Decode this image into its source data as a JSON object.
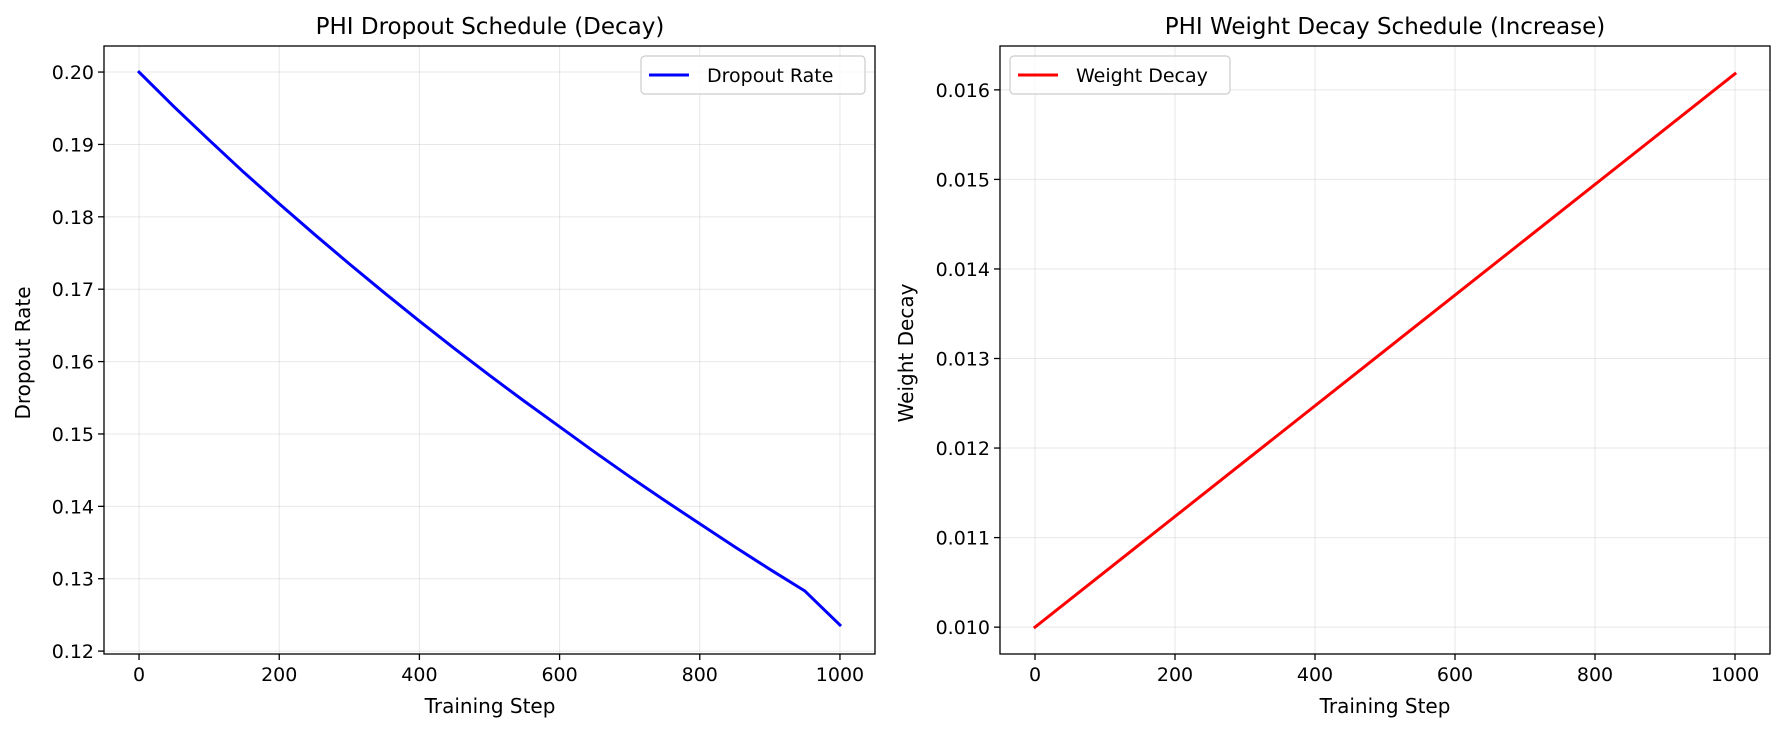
{
  "chart_data": [
    {
      "type": "line",
      "title": "PHI Dropout Schedule (Decay)",
      "xlabel": "Training Step",
      "ylabel": "Dropout Rate",
      "xlim": [
        -50,
        1050
      ],
      "ylim": [
        0.1196,
        0.2036
      ],
      "xticks": [
        0,
        200,
        400,
        600,
        800,
        1000
      ],
      "xtick_labels": [
        "0",
        "200",
        "400",
        "600",
        "800",
        "1000"
      ],
      "yticks": [
        0.12,
        0.13,
        0.14,
        0.15,
        0.16,
        0.17,
        0.18,
        0.19,
        0.2
      ],
      "ytick_labels": [
        "0.12",
        "0.13",
        "0.14",
        "0.15",
        "0.16",
        "0.17",
        "0.18",
        "0.19",
        "0.20"
      ],
      "grid": true,
      "legend_position": "upper-right",
      "series": [
        {
          "name": "Dropout Rate",
          "color": "#0000ff",
          "x": [
            0,
            50,
            100,
            150,
            200,
            250,
            300,
            350,
            400,
            450,
            500,
            550,
            600,
            650,
            700,
            750,
            800,
            850,
            900,
            950,
            1000
          ],
          "values": [
            0.2,
            0.1952,
            0.1906,
            0.1861,
            0.1818,
            0.1776,
            0.1735,
            0.1695,
            0.1656,
            0.1618,
            0.1581,
            0.1545,
            0.151,
            0.1475,
            0.1441,
            0.1408,
            0.1376,
            0.1344,
            0.1313,
            0.1283,
            0.1236
          ]
        }
      ]
    },
    {
      "type": "line",
      "title": "PHI Weight Decay Schedule (Increase)",
      "xlabel": "Training Step",
      "ylabel": "Weight Decay",
      "xlim": [
        -50,
        1050
      ],
      "ylim": [
        0.0097,
        0.01649
      ],
      "xticks": [
        0,
        200,
        400,
        600,
        800,
        1000
      ],
      "xtick_labels": [
        "0",
        "200",
        "400",
        "600",
        "800",
        "1000"
      ],
      "yticks": [
        0.01,
        0.011,
        0.012,
        0.013,
        0.014,
        0.015,
        0.016
      ],
      "ytick_labels": [
        "0.010",
        "0.011",
        "0.012",
        "0.013",
        "0.014",
        "0.015",
        "0.016"
      ],
      "grid": true,
      "legend_position": "upper-left",
      "series": [
        {
          "name": "Weight Decay",
          "color": "#ff0000",
          "x": [
            0,
            1000
          ],
          "values": [
            0.01,
            0.01618
          ]
        }
      ]
    }
  ]
}
